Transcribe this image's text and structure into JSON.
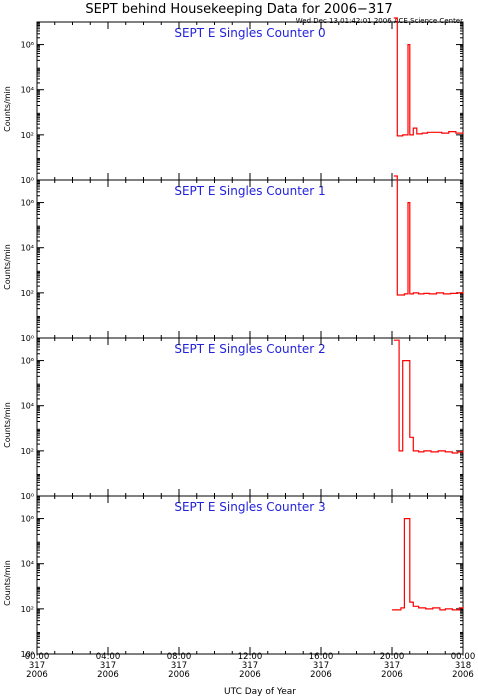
{
  "title": "SEPT behind Housekeeping Data for 2006−317",
  "timestamp": "Wed Dec 13 01:42:01 2006 ACE Science Center",
  "xlabel": "UTC Day of Year",
  "colors": {
    "axes": "#000000",
    "series": "#ff0000",
    "panel_title": "#2222dd"
  },
  "chart_data": [
    {
      "type": "line",
      "title": "SEPT E Singles Counter 0",
      "ylabel": "Counts/min",
      "yscale": "log",
      "ylim": [
        1,
        10000000
      ],
      "yticks": [
        {
          "v": 1,
          "label": "10⁰"
        },
        {
          "v": 100,
          "label": "10²"
        },
        {
          "v": 10000,
          "label": "10⁴"
        },
        {
          "v": 1000000,
          "label": "10⁶"
        }
      ],
      "xlim": [
        0,
        24
      ],
      "grid": false,
      "step": true,
      "x": [
        20.1,
        20.3,
        20.6,
        20.9,
        21.0,
        21.2,
        21.4,
        21.7,
        22.0,
        22.4,
        22.8,
        23.2,
        23.6,
        24.0
      ],
      "y": [
        15000000,
        90,
        100,
        1000000,
        100,
        200,
        110,
        120,
        130,
        130,
        120,
        140,
        120,
        110
      ]
    },
    {
      "type": "line",
      "title": "SEPT E Singles Counter 1",
      "ylabel": "Counts/min",
      "yscale": "log",
      "ylim": [
        1,
        10000000
      ],
      "yticks": [
        {
          "v": 1,
          "label": "10⁰"
        },
        {
          "v": 100,
          "label": "10²"
        },
        {
          "v": 10000,
          "label": "10⁴"
        },
        {
          "v": 1000000,
          "label": "10⁶"
        }
      ],
      "xlim": [
        0,
        24
      ],
      "grid": false,
      "step": true,
      "x": [
        20.1,
        20.3,
        20.7,
        20.9,
        21.0,
        21.2,
        21.5,
        21.8,
        22.1,
        22.5,
        22.9,
        23.3,
        23.7,
        24.0
      ],
      "y": [
        15000000,
        80,
        90,
        1000000,
        90,
        100,
        90,
        95,
        90,
        100,
        90,
        95,
        100,
        110
      ]
    },
    {
      "type": "line",
      "title": "SEPT E Singles Counter 2",
      "ylabel": "Counts/min",
      "yscale": "log",
      "ylim": [
        1,
        10000000
      ],
      "yticks": [
        {
          "v": 1,
          "label": "10⁰"
        },
        {
          "v": 100,
          "label": "10²"
        },
        {
          "v": 10000,
          "label": "10⁴"
        },
        {
          "v": 1000000,
          "label": "10⁶"
        }
      ],
      "xlim": [
        0,
        24
      ],
      "grid": false,
      "step": true,
      "x": [
        20.1,
        20.4,
        20.6,
        21.0,
        21.2,
        21.5,
        21.8,
        22.2,
        22.6,
        23.0,
        23.4,
        23.7,
        24.0
      ],
      "y": [
        8000000,
        100,
        1000000,
        400,
        100,
        90,
        100,
        90,
        100,
        90,
        80,
        90,
        100
      ]
    },
    {
      "type": "line",
      "title": "SEPT E Singles Counter 3",
      "ylabel": "Counts/min",
      "yscale": "log",
      "ylim": [
        1,
        10000000
      ],
      "yticks": [
        {
          "v": 1,
          "label": "10⁰"
        },
        {
          "v": 100,
          "label": "10²"
        },
        {
          "v": 10000,
          "label": "10⁴"
        },
        {
          "v": 1000000,
          "label": "10⁶"
        }
      ],
      "xlim": [
        0,
        24
      ],
      "grid": false,
      "step": true,
      "x": [
        20.0,
        20.5,
        20.7,
        21.0,
        21.2,
        21.5,
        21.9,
        22.3,
        22.7,
        23.0,
        23.4,
        23.8,
        24.0
      ],
      "y": [
        90,
        110,
        1000000,
        200,
        130,
        110,
        100,
        110,
        90,
        100,
        90,
        110,
        100
      ]
    }
  ],
  "xticks": [
    {
      "v": 0,
      "time": "00:00",
      "doy": "317",
      "year": "2006"
    },
    {
      "v": 4,
      "time": "04:00",
      "doy": "317",
      "year": "2006"
    },
    {
      "v": 8,
      "time": "08:00",
      "doy": "317",
      "year": "2006"
    },
    {
      "v": 12,
      "time": "12:00",
      "doy": "317",
      "year": "2006"
    },
    {
      "v": 16,
      "time": "16:00",
      "doy": "317",
      "year": "2006"
    },
    {
      "v": 20,
      "time": "20:00",
      "doy": "317",
      "year": "2006"
    },
    {
      "v": 24,
      "time": "00:00",
      "doy": "318",
      "year": "2006"
    }
  ]
}
